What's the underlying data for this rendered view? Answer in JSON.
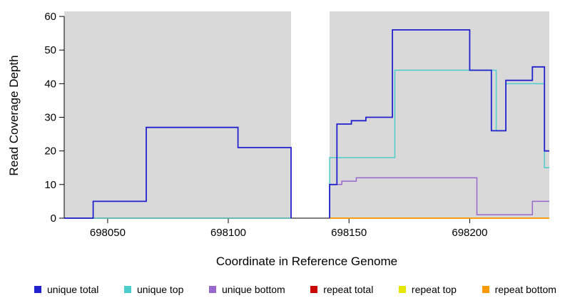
{
  "chart_data": {
    "type": "line",
    "step": true,
    "title": "",
    "xlabel": "Coordinate in Reference Genome",
    "ylabel": "Read Coverage Depth",
    "xlim": [
      698032,
      698233
    ],
    "ylim": [
      0,
      61.5
    ],
    "xticks": [
      698050,
      698100,
      698150,
      698200
    ],
    "yticks": [
      0,
      10,
      20,
      30,
      40,
      50,
      60
    ],
    "grid": false,
    "legend_position": "bottom",
    "panel_bg": "#d9d9d9",
    "axis_color": "#000000",
    "gap_region": {
      "from": 698126,
      "to": 698142,
      "fill": "#ffffff"
    },
    "series": [
      {
        "name": "repeat total",
        "color": "#cc0000",
        "lw": 1.5,
        "segments": [
          [
            [
              698032,
              0
            ],
            [
              698126,
              0
            ]
          ],
          [
            [
              698142,
              0
            ],
            [
              698233,
              0
            ]
          ]
        ]
      },
      {
        "name": "repeat top",
        "color": "#e6e600",
        "lw": 1.5,
        "segments": [
          [
            [
              698032,
              0
            ],
            [
              698126,
              0
            ]
          ],
          [
            [
              698142,
              0
            ],
            [
              698233,
              0
            ]
          ]
        ]
      },
      {
        "name": "repeat bottom",
        "color": "#ff9900",
        "lw": 1.5,
        "segments": [
          [
            [
              698032,
              0
            ],
            [
              698126,
              0
            ]
          ],
          [
            [
              698142,
              0
            ],
            [
              698233,
              0
            ]
          ]
        ]
      },
      {
        "name": "unique bottom",
        "color": "#9966cc",
        "lw": 1.5,
        "segments": [
          [
            [
              698032,
              0
            ],
            [
              698126,
              0
            ]
          ],
          [
            [
              698142,
              0
            ],
            [
              698142,
              10
            ],
            [
              698147,
              11
            ],
            [
              698153,
              12
            ],
            [
              698203,
              1
            ],
            [
              698226,
              5
            ],
            [
              698233,
              5
            ]
          ]
        ]
      },
      {
        "name": "unique top",
        "color": "#4dcccc",
        "lw": 1.5,
        "segments": [
          [
            [
              698032,
              0
            ],
            [
              698126,
              0
            ]
          ],
          [
            [
              698142,
              0
            ],
            [
              698142,
              18
            ],
            [
              698169,
              44
            ],
            [
              698211,
              26
            ],
            [
              698215,
              40
            ],
            [
              698231,
              15
            ],
            [
              698233,
              15
            ]
          ]
        ]
      },
      {
        "name": "unique total",
        "color": "#2222cc",
        "lw": 1.8,
        "segments": [
          [
            [
              698032,
              0
            ],
            [
              698044,
              5
            ],
            [
              698066,
              27
            ],
            [
              698104,
              21
            ],
            [
              698126,
              0
            ]
          ],
          [
            [
              698142,
              0
            ],
            [
              698142,
              10
            ],
            [
              698145,
              28
            ],
            [
              698151,
              29
            ],
            [
              698157,
              30
            ],
            [
              698168,
              56
            ],
            [
              698200,
              44
            ],
            [
              698209,
              26
            ],
            [
              698215,
              41
            ],
            [
              698226,
              45
            ],
            [
              698231,
              20
            ],
            [
              698233,
              20
            ]
          ]
        ]
      }
    ],
    "legend": [
      {
        "label": "unique total",
        "color": "#2222cc"
      },
      {
        "label": "unique top",
        "color": "#4dcccc"
      },
      {
        "label": "unique bottom",
        "color": "#9966cc"
      },
      {
        "label": "repeat total",
        "color": "#cc0000"
      },
      {
        "label": "repeat top",
        "color": "#e6e600"
      },
      {
        "label": "repeat bottom",
        "color": "#ff9900"
      }
    ]
  }
}
